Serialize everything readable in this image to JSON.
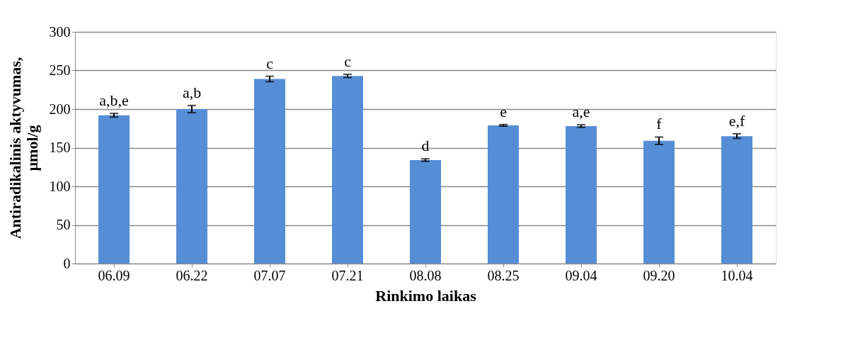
{
  "chart_data": {
    "type": "bar",
    "xlabel": "Rinkimo laikas",
    "ylabel": "Antiradikalinis aktyvumas,\nµmol/g",
    "categories": [
      "06.09",
      "06.22",
      "07.07",
      "07.21",
      "08.08",
      "08.25",
      "09.04",
      "09.20",
      "10.04"
    ],
    "values": [
      192,
      200,
      239,
      243,
      134,
      179,
      178,
      159,
      165
    ],
    "errors": [
      2.4,
      4.7,
      3.5,
      2,
      1.6,
      1,
      1.7,
      4.8,
      3
    ],
    "color": "#558ed5",
    "ylim": [
      0,
      300
    ],
    "yticks": [
      0,
      50,
      100,
      150,
      200,
      250,
      300
    ],
    "grid": "y",
    "annotations": [
      {
        "text": "a,b,e",
        "x": "06.09",
        "y": 192
      },
      {
        "text": "a,b",
        "x": "06.22",
        "y": 200
      },
      {
        "text": "c",
        "x": "07.07",
        "y": 239
      },
      {
        "text": "c",
        "x": "07.21",
        "y": 243
      },
      {
        "text": "d",
        "x": "08.08",
        "y": 134
      },
      {
        "text": "e",
        "x": "08.25",
        "y": 179
      },
      {
        "text": "a,e",
        "x": "09.04",
        "y": 178
      },
      {
        "text": "f",
        "x": "09.20",
        "y": 159
      },
      {
        "text": "e,f",
        "x": "10.04",
        "y": 165
      }
    ]
  }
}
